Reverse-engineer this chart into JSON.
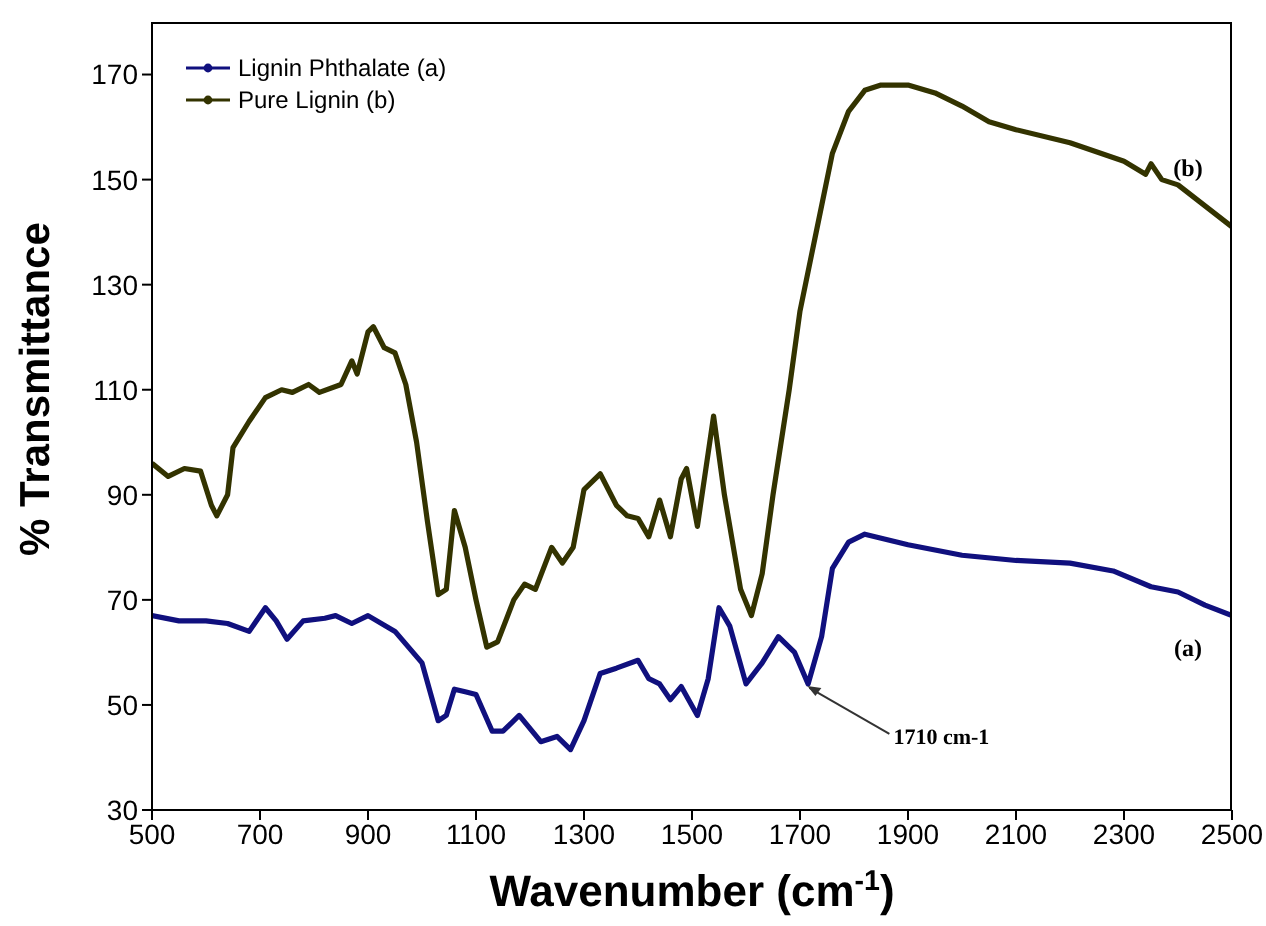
{
  "chart_data": {
    "type": "line",
    "xlabel": "Wavenumber (cm$^{-1}$)",
    "ylabel": "% Transmittance",
    "xlim": [
      500,
      2500
    ],
    "xticks": [
      500,
      700,
      900,
      1100,
      1300,
      1500,
      1700,
      1900,
      2100,
      2300,
      2500
    ],
    "ylim": [
      30,
      180
    ],
    "yticks": [
      30,
      50,
      70,
      90,
      110,
      130,
      150,
      170
    ],
    "grid": false,
    "legend": "top left",
    "line_style": "solid",
    "series": [
      {
        "name": "Lignin Phthalate (a)",
        "color": "#10107e",
        "x": [
          500,
          550,
          600,
          640,
          680,
          710,
          730,
          750,
          780,
          820,
          840,
          870,
          900,
          950,
          1000,
          1030,
          1045,
          1060,
          1080,
          1100,
          1130,
          1150,
          1180,
          1220,
          1250,
          1275,
          1300,
          1330,
          1360,
          1400,
          1420,
          1440,
          1460,
          1480,
          1510,
          1530,
          1550,
          1570,
          1600,
          1630,
          1660,
          1690,
          1715,
          1740,
          1760,
          1790,
          1820,
          1900,
          2000,
          2100,
          2200,
          2280,
          2350,
          2400,
          2450,
          2500
        ],
        "values": [
          67,
          66,
          66,
          65.5,
          64,
          68.5,
          66,
          62.5,
          66,
          66.5,
          67,
          65.5,
          67,
          64,
          58,
          47,
          48,
          53,
          52.5,
          52,
          45,
          45,
          48,
          43,
          44,
          41.5,
          47,
          56,
          57,
          58.5,
          55,
          54,
          51,
          53.5,
          48,
          55,
          68.5,
          65,
          54,
          58,
          63,
          60,
          54,
          63,
          76,
          81,
          82.5,
          80.5,
          78.5,
          77.5,
          77,
          75.5,
          72.5,
          71.5,
          69,
          67
        ]
      },
      {
        "name": "Pure Lignin (b)",
        "color": "#333300",
        "x": [
          500,
          530,
          560,
          590,
          610,
          620,
          640,
          650,
          680,
          710,
          740,
          760,
          790,
          810,
          850,
          870,
          880,
          900,
          910,
          930,
          950,
          970,
          990,
          1010,
          1030,
          1045,
          1060,
          1080,
          1100,
          1120,
          1140,
          1170,
          1190,
          1210,
          1240,
          1260,
          1280,
          1300,
          1330,
          1360,
          1380,
          1400,
          1420,
          1440,
          1460,
          1480,
          1490,
          1510,
          1530,
          1540,
          1560,
          1590,
          1610,
          1630,
          1650,
          1680,
          1700,
          1730,
          1760,
          1790,
          1820,
          1850,
          1900,
          1950,
          2000,
          2050,
          2100,
          2200,
          2300,
          2340,
          2350,
          2370,
          2400,
          2450,
          2500
        ],
        "values": [
          96,
          93.5,
          95,
          94.5,
          88,
          86,
          90,
          99,
          104,
          108.5,
          110,
          109.5,
          111,
          109.5,
          111,
          115.5,
          113,
          121,
          122,
          118,
          117,
          111,
          100,
          85,
          71,
          72,
          87,
          80,
          70,
          61,
          62,
          70,
          73,
          72,
          80,
          77,
          80,
          91,
          94,
          88,
          86,
          85.5,
          82,
          89,
          82,
          93,
          95,
          84,
          98,
          105,
          90,
          72,
          67,
          75,
          90,
          110,
          125,
          140,
          155,
          163,
          167,
          168,
          168,
          166.5,
          164,
          161,
          159.5,
          157,
          153.5,
          151,
          153,
          150,
          149,
          145,
          141
        ]
      }
    ],
    "annotations": [
      {
        "text": "1710 cm-1",
        "x": 1710,
        "y": 54
      },
      "(b)",
      "(a)"
    ]
  }
}
